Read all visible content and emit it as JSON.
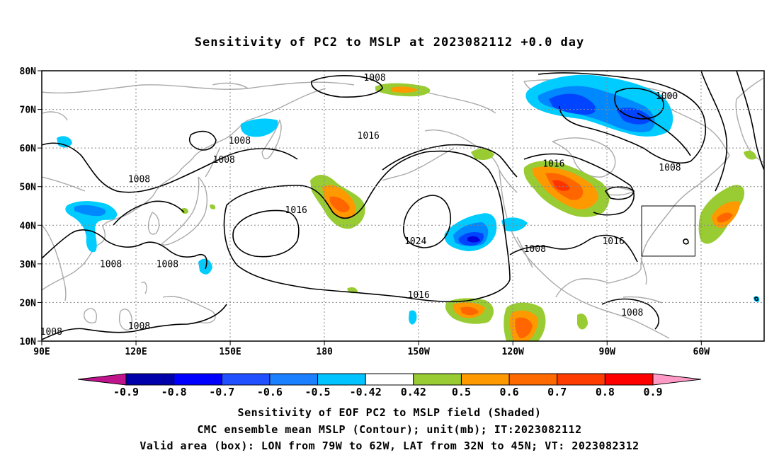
{
  "title": "Sensitivity of PC2 to MSLP at 2023082112 +0.0 day",
  "map": {
    "lat_labels": [
      "80N",
      "70N",
      "60N",
      "50N",
      "40N",
      "30N",
      "20N",
      "10N"
    ],
    "lon_labels": [
      "90E",
      "120E",
      "150E",
      "180",
      "150W",
      "120W",
      "90W",
      "60W"
    ],
    "lon_range": [
      90,
      320
    ],
    "lat_range": [
      10,
      80
    ],
    "contour_labels": [
      {
        "text": "1008",
        "lon": 196,
        "lat": 77.8
      },
      {
        "text": "1000",
        "lon": 289,
        "lat": 73
      },
      {
        "text": "1016",
        "lon": 194,
        "lat": 62.8
      },
      {
        "text": "1016",
        "lon": 253,
        "lat": 55.5
      },
      {
        "text": "1008",
        "lon": 153,
        "lat": 61.5
      },
      {
        "text": "1008",
        "lon": 148,
        "lat": 56.5
      },
      {
        "text": "1008",
        "lon": 290,
        "lat": 54.5
      },
      {
        "text": "1008",
        "lon": 121,
        "lat": 51.5
      },
      {
        "text": "1016",
        "lon": 171,
        "lat": 43.5
      },
      {
        "text": "1024",
        "lon": 209,
        "lat": 35.5
      },
      {
        "text": "1016",
        "lon": 272,
        "lat": 35.5
      },
      {
        "text": "1008",
        "lon": 247,
        "lat": 33.5
      },
      {
        "text": "1008",
        "lon": 112,
        "lat": 29.5
      },
      {
        "text": "1008",
        "lon": 130,
        "lat": 29.5
      },
      {
        "text": "1016",
        "lon": 210,
        "lat": 21.5
      },
      {
        "text": "1008",
        "lon": 278,
        "lat": 17
      },
      {
        "text": "1008",
        "lon": 121,
        "lat": 13.5
      },
      {
        "text": "1008",
        "lon": 93,
        "lat": 12
      }
    ],
    "valid_box": {
      "lon_w": 281,
      "lon_e": 298,
      "lat_s": 32,
      "lat_n": 45
    },
    "colors": {
      "coast": "#aaaaaa",
      "contour": "#000000",
      "grid": "#888888",
      "pos_042": "#99cc33",
      "pos_05": "#ff9900",
      "pos_06": "#ff6600",
      "pos_07": "#ff3300",
      "neg_05": "#00ccff",
      "neg_06": "#0088ff",
      "neg_07": "#0044ff",
      "neg_08": "#0000dd"
    }
  },
  "colorbar": {
    "labels": [
      "-0.9",
      "-0.8",
      "-0.7",
      "-0.6",
      "-0.5",
      "-0.42",
      "0.42",
      "0.5",
      "0.6",
      "0.7",
      "0.8",
      "0.9"
    ],
    "colors": [
      "#0000aa",
      "#0000ff",
      "#2050ff",
      "#1a80ff",
      "#00c3ff",
      "#ffffff",
      "#99cc33",
      "#ff9900",
      "#ff6a00",
      "#ff3c00",
      "#ff0000"
    ],
    "under_color": "#c0148c",
    "over_color": "#ff9ac6"
  },
  "captions": [
    "Sensitivity of EOF PC2 to MSLP field (Shaded)",
    "CMC ensemble mean MSLP (Contour); unit(mb); IT:2023082112",
    "Valid area (box): LON from 79W to 62W, LAT from 32N to 45N; VT: 2023082312"
  ]
}
